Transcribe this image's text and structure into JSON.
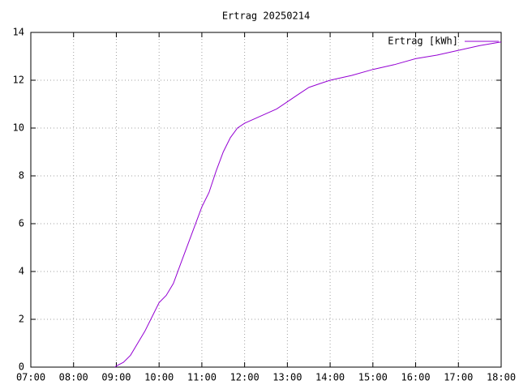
{
  "chart_data": {
    "type": "line",
    "title": "Ertrag 20250214",
    "x": [
      "08:58",
      "09:00",
      "09:10",
      "09:20",
      "09:30",
      "09:40",
      "09:50",
      "10:00",
      "10:10",
      "10:20",
      "10:30",
      "10:40",
      "10:50",
      "11:00",
      "11:10",
      "11:20",
      "11:30",
      "11:40",
      "11:50",
      "12:00",
      "12:15",
      "12:30",
      "12:45",
      "13:00",
      "13:15",
      "13:30",
      "13:45",
      "14:00",
      "14:30",
      "15:00",
      "15:30",
      "16:00",
      "16:30",
      "17:00",
      "17:30",
      "18:00"
    ],
    "series": [
      {
        "name": "Ertrag [kWh]",
        "color": "#9400d3",
        "values": [
          0,
          0.05,
          0.2,
          0.5,
          1.0,
          1.5,
          2.1,
          2.7,
          3.0,
          3.5,
          4.3,
          5.1,
          5.9,
          6.7,
          7.3,
          8.2,
          9.0,
          9.6,
          10.0,
          10.2,
          10.4,
          10.6,
          10.8,
          11.1,
          11.4,
          11.7,
          11.85,
          12.0,
          12.2,
          12.45,
          12.65,
          12.9,
          13.05,
          13.25,
          13.45,
          13.6
        ]
      }
    ],
    "xlim": [
      "07:00",
      "18:00"
    ],
    "xticks": [
      "07:00",
      "08:00",
      "09:00",
      "10:00",
      "11:00",
      "12:00",
      "13:00",
      "14:00",
      "15:00",
      "16:00",
      "17:00",
      "18:00"
    ],
    "ylim": [
      0,
      14
    ],
    "yticks": [
      0,
      2,
      4,
      6,
      8,
      10,
      12,
      14
    ],
    "grid": true,
    "legend": "top-right"
  }
}
